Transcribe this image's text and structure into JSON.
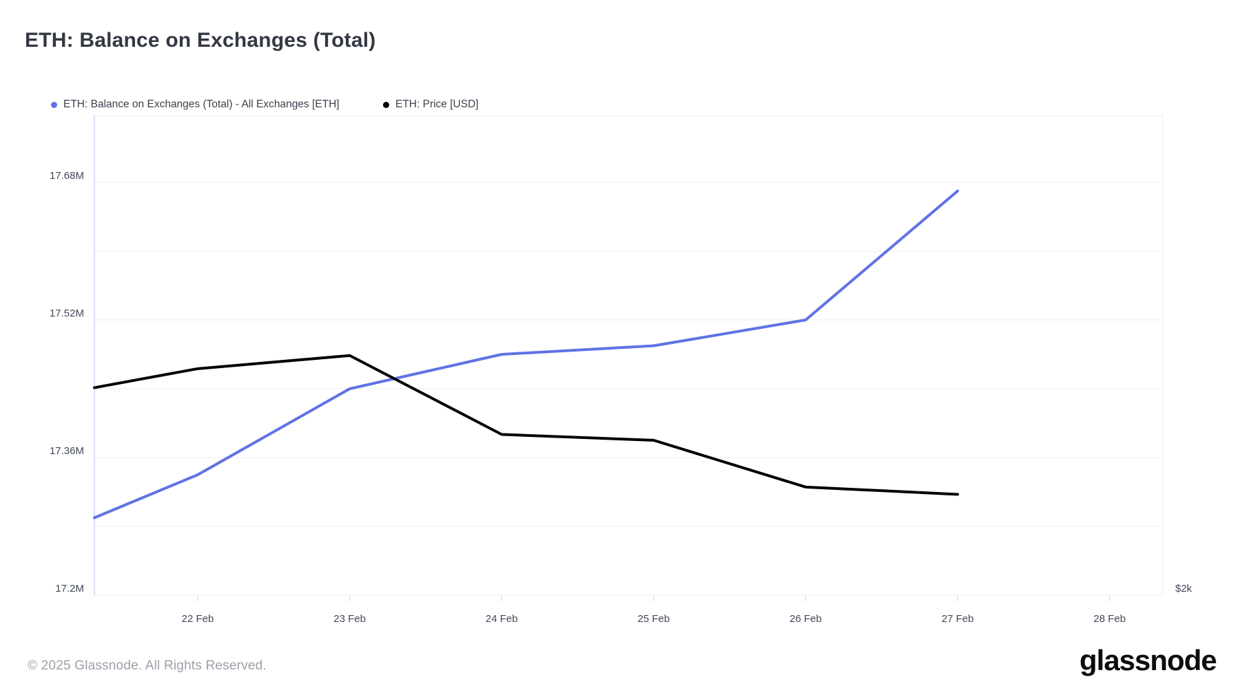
{
  "page": {
    "title": "ETH: Balance on Exchanges (Total)",
    "footer": "© 2025 Glassnode. All Rights Reserved.",
    "logo_text": "glassnode"
  },
  "legend": {
    "items": [
      {
        "label": "ETH: Balance on Exchanges (Total) - All Exchanges [ETH]",
        "color": "#6072e4"
      },
      {
        "label": "ETH: Price [USD]",
        "color": "#000000"
      }
    ]
  },
  "chart_data": {
    "type": "line",
    "title": "ETH: Balance on Exchanges (Total)",
    "legend_position": "top-left",
    "grid": true,
    "x_axis": {
      "unit": "date (Feb 2025)",
      "tick_labels": [
        "22 Feb",
        "23 Feb",
        "24 Feb",
        "25 Feb",
        "26 Feb",
        "27 Feb",
        "28 Feb"
      ],
      "tick_days": [
        22,
        23,
        24,
        25,
        26,
        27,
        28
      ],
      "plot_range_days": [
        21.32,
        28.35
      ]
    },
    "y_axis_left": {
      "unit": "ETH (millions)",
      "tick_values_millions": [
        17.2,
        17.28,
        17.36,
        17.44,
        17.52,
        17.6,
        17.68
      ],
      "labels": [
        {
          "value": 17.2,
          "text": "17.2M"
        },
        {
          "value": 17.36,
          "text": "17.36M"
        },
        {
          "value": 17.52,
          "text": "17.52M"
        },
        {
          "value": 17.68,
          "text": "17.68M"
        }
      ],
      "plot_range": [
        17.2,
        17.7576
      ]
    },
    "y_axis_right": {
      "unit": "USD",
      "visible_label": "$2k",
      "label_at_value": 2000,
      "plot_range": [
        2000,
        3641
      ]
    },
    "series": [
      {
        "name": "ETH: Balance on Exchanges (Total) - All Exchanges [ETH]",
        "axis": "left",
        "color": "#6072e4",
        "x_days_feb": [
          21.32,
          22,
          23,
          24,
          25,
          26,
          27
        ],
        "values": [
          17.29,
          17.34,
          17.44,
          17.48,
          17.49,
          17.52,
          17.67
        ]
      },
      {
        "name": "ETH: Price [USD]",
        "axis": "right",
        "color": "#000000",
        "x_days_feb": [
          21.32,
          22,
          23,
          24,
          25,
          26,
          27
        ],
        "values": [
          2710,
          2775,
          2820,
          2550,
          2530,
          2370,
          2345
        ]
      }
    ]
  }
}
